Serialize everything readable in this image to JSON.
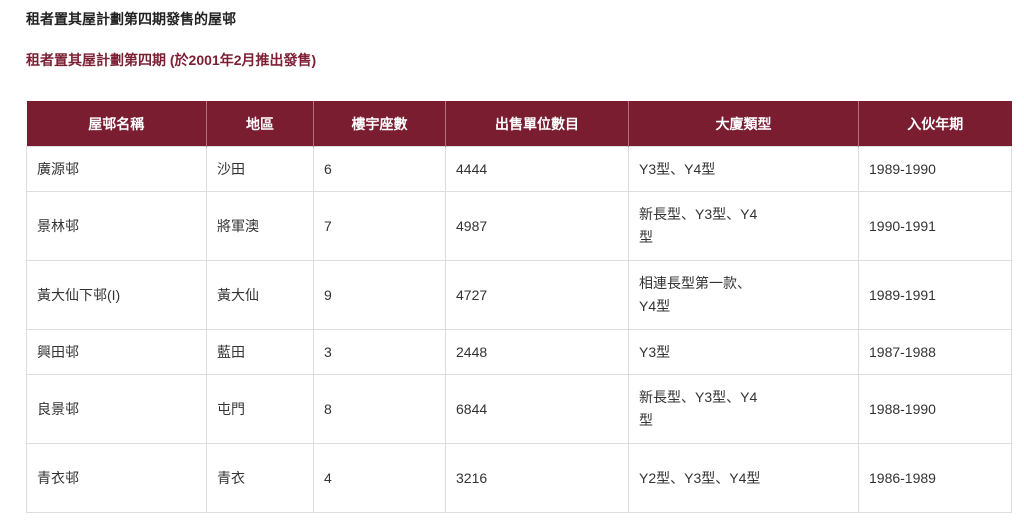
{
  "title": "租者置其屋計劃第四期發售的屋邨",
  "subtitle": "租者置其屋計劃第四期 (於2001年2月推出發售)",
  "table": {
    "headers": [
      "屋邨名稱",
      "地區",
      "樓宇座數",
      "出售單位數目",
      "大廈類型",
      "入伙年期"
    ],
    "rows": [
      [
        "廣源邨",
        "沙田",
        "6",
        "4444",
        "Y3型、Y4型",
        "1989-1990"
      ],
      [
        "景林邨",
        "將軍澳",
        "7",
        "4987",
        "新長型、Y3型、Y4型",
        "1990-1991"
      ],
      [
        "黃大仙下邨(I)",
        "黃大仙",
        "9",
        "4727",
        "相連長型第一款、Y4型",
        "1989-1991"
      ],
      [
        "興田邨",
        "藍田",
        "3",
        "2448",
        "Y3型",
        "1987-1988"
      ],
      [
        "良景邨",
        "屯門",
        "8",
        "6844",
        "新長型、Y3型、Y4型",
        "1988-1990"
      ],
      [
        "青衣邨",
        "青衣",
        "4",
        "3216",
        "Y2型、Y3型、Y4型",
        "1986-1989"
      ]
    ]
  },
  "colors": {
    "header_bg": "#7a1d31",
    "subtitle": "#7b1f33"
  }
}
